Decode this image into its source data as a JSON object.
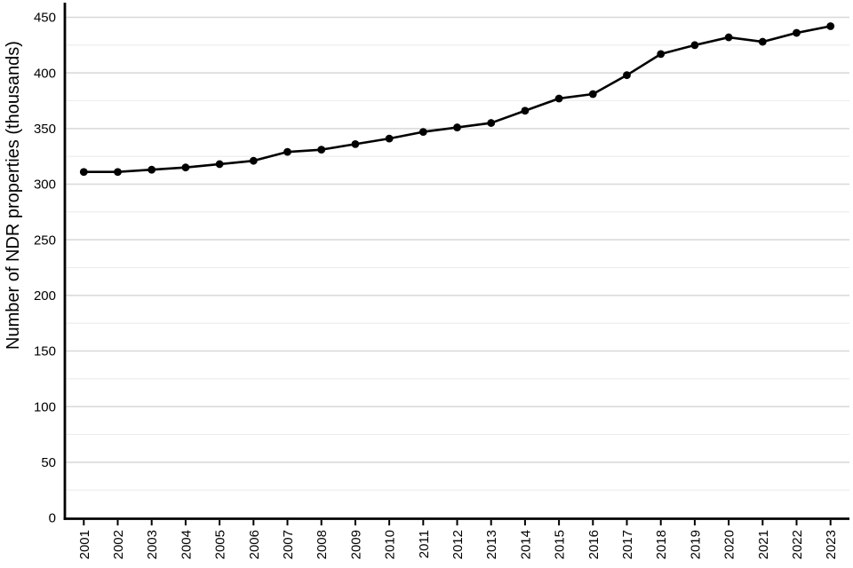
{
  "chart_data": {
    "type": "line",
    "title": "",
    "xlabel": "",
    "ylabel": "Number of NDR properties (thousands)",
    "categories": [
      "2001",
      "2002",
      "2003",
      "2004",
      "2005",
      "2006",
      "2007",
      "2008",
      "2009",
      "2010",
      "2011",
      "2012",
      "2013",
      "2014",
      "2015",
      "2016",
      "2017",
      "2018",
      "2019",
      "2020",
      "2021",
      "2022",
      "2023"
    ],
    "series": [
      {
        "name": "NDR properties (thousands)",
        "values": [
          311,
          311,
          313,
          315,
          318,
          321,
          329,
          331,
          336,
          341,
          347,
          351,
          355,
          366,
          377,
          381,
          398,
          417,
          425,
          432,
          428,
          436,
          442
        ]
      }
    ],
    "ylim": [
      0,
      450
    ],
    "ytick_step": 50,
    "yticks": [
      0,
      50,
      100,
      150,
      200,
      250,
      300,
      350,
      400,
      450
    ],
    "minor_grid_step": 25,
    "grid": "horizontal-only",
    "legend_position": "none",
    "line_color": "#000000",
    "marker": "filled-circle",
    "axis_color": "#000000",
    "major_grid_color": "#d8d8d8",
    "minor_grid_color": "#ececec",
    "x_label_rotation_deg": -90
  }
}
